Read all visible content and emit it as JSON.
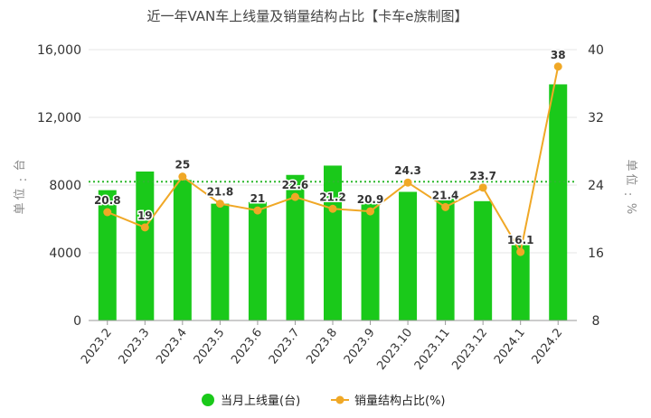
{
  "chart_data": {
    "type": "bar",
    "title": "近一年VAN车上线量及销量结构占比【卡车e族制图】",
    "categories": [
      "2023.2",
      "2023.3",
      "2023.4",
      "2023.5",
      "2023.6",
      "2023.7",
      "2023.8",
      "2023.9",
      "2023.10",
      "2023.11",
      "2023.12",
      "2024.1",
      "2024.2"
    ],
    "y_left": {
      "label_chars": [
        "单",
        "位",
        ":",
        "台"
      ],
      "ticks": [
        "0",
        "4000",
        "8000",
        "12,000",
        "16,000"
      ],
      "tick_values": [
        0,
        4000,
        8000,
        12000,
        16000
      ],
      "range": [
        0,
        16000
      ]
    },
    "y_right": {
      "label_chars": [
        "单",
        "位",
        ":",
        "%"
      ],
      "ticks": [
        "8",
        "16",
        "24",
        "32",
        "40"
      ],
      "tick_values": [
        8,
        16,
        24,
        32,
        40
      ],
      "range": [
        8,
        40
      ]
    },
    "reference_line": {
      "axis": "left",
      "value": 8200,
      "style": "dotted",
      "color": "#2eb82e"
    },
    "series": [
      {
        "name": "当月上线量(台)",
        "kind": "bar",
        "axis": "left",
        "color": "#1ac91a",
        "values": [
          7700,
          8800,
          8300,
          6900,
          7000,
          8600,
          9150,
          6900,
          7600,
          7200,
          7050,
          4450,
          13950
        ]
      },
      {
        "name": "销量结构占比(%)",
        "kind": "line",
        "axis": "right",
        "color": "#f0a826",
        "values": [
          20.8,
          19,
          25,
          21.8,
          21,
          22.6,
          21.2,
          20.9,
          24.3,
          21.4,
          23.7,
          16.1,
          38
        ],
        "labels": [
          "20.8",
          "19",
          "25",
          "21.8",
          "21",
          "22.6",
          "21.2",
          "20.9",
          "24.3",
          "21.4",
          "23.7",
          "16.1",
          "38"
        ]
      }
    ],
    "legend": {
      "position": "bottom"
    },
    "grid": true
  }
}
